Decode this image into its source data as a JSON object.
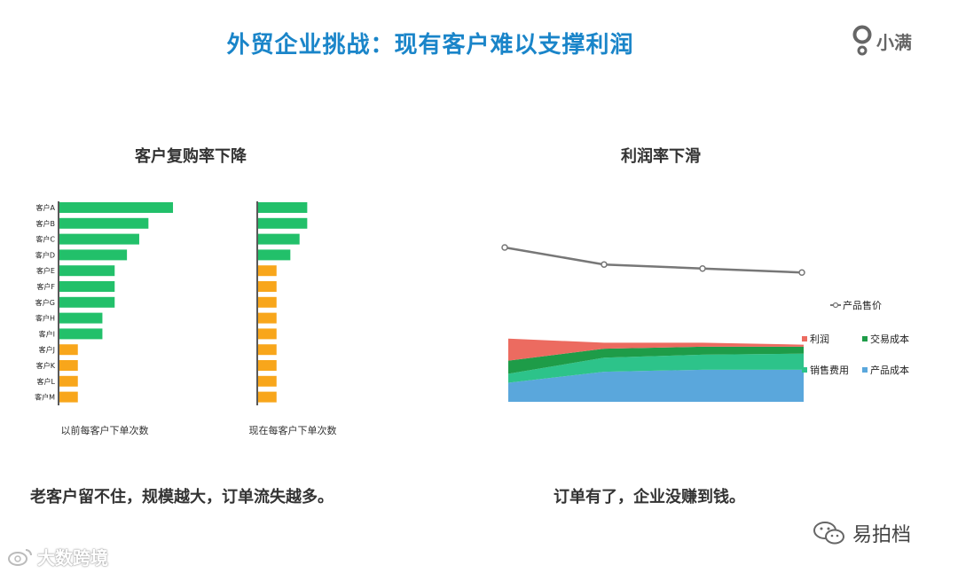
{
  "page": {
    "title": "外贸企业挑战：现有客户难以支撑利润",
    "logo_text": "小满",
    "left_caption": "老客户留不住，规模越大，订单流失越多。",
    "right_caption": "订单有了，企业没赚到钱。",
    "watermark_left": "大数跨境",
    "watermark_right": "易拍档"
  },
  "colors": {
    "title_blue": "#1a85c9",
    "bar_green": "#22c06a",
    "bar_orange": "#f8a61b",
    "profit_red": "#ec6b60",
    "trade_cost_green": "#1e9c48",
    "sales_cost_teal": "#2dc38a",
    "product_cost_blue": "#5aa7dc",
    "price_line_gray": "#777777"
  },
  "chart_data": [
    {
      "type": "bar",
      "orientation": "horizontal",
      "title": "客户复购率下降",
      "categories": [
        "客户A",
        "客户B",
        "客户C",
        "客户D",
        "客户E",
        "客户F",
        "客户G",
        "客户H",
        "客户I",
        "客户J",
        "客户K",
        "客户L",
        "客户M"
      ],
      "panels": [
        {
          "xlabel": "以前每客户下单次数",
          "values": [
            7.4,
            5.8,
            5.2,
            4.4,
            3.6,
            3.6,
            3.6,
            2.8,
            2.8,
            1.2,
            1.2,
            1.2,
            1.2
          ],
          "bar_colors": [
            "green",
            "green",
            "green",
            "green",
            "green",
            "green",
            "green",
            "green",
            "green",
            "orange",
            "orange",
            "orange",
            "orange"
          ]
        },
        {
          "xlabel": "现在每客户下单次数",
          "values": [
            3.2,
            3.2,
            2.7,
            2.1,
            1.2,
            1.2,
            1.2,
            1.2,
            1.2,
            1.2,
            1.2,
            1.2,
            1.2
          ],
          "bar_colors": [
            "green",
            "green",
            "green",
            "green",
            "orange",
            "orange",
            "orange",
            "orange",
            "orange",
            "orange",
            "orange",
            "orange",
            "orange"
          ]
        }
      ],
      "xlim": [
        0,
        8
      ]
    },
    {
      "type": "area",
      "title": "利润率下滑",
      "x": [
        1,
        2,
        3,
        4
      ],
      "ylim": [
        0,
        100
      ],
      "stacked": true,
      "series": [
        {
          "name": "产品成本",
          "values": [
            19,
            30,
            32,
            32
          ]
        },
        {
          "name": "销售费用",
          "values": [
            9,
            14,
            15,
            16
          ]
        },
        {
          "name": "交易成本",
          "values": [
            13,
            9,
            8,
            7
          ]
        },
        {
          "name": "利润",
          "values": [
            22,
            6,
            4,
            2
          ]
        }
      ],
      "line_series": {
        "name": "产品售价",
        "values": [
          100,
          83,
          79,
          75
        ]
      },
      "legend": [
        "产品售价",
        "利润",
        "交易成本",
        "销售费用",
        "产品成本"
      ],
      "legend_position": "right"
    }
  ]
}
